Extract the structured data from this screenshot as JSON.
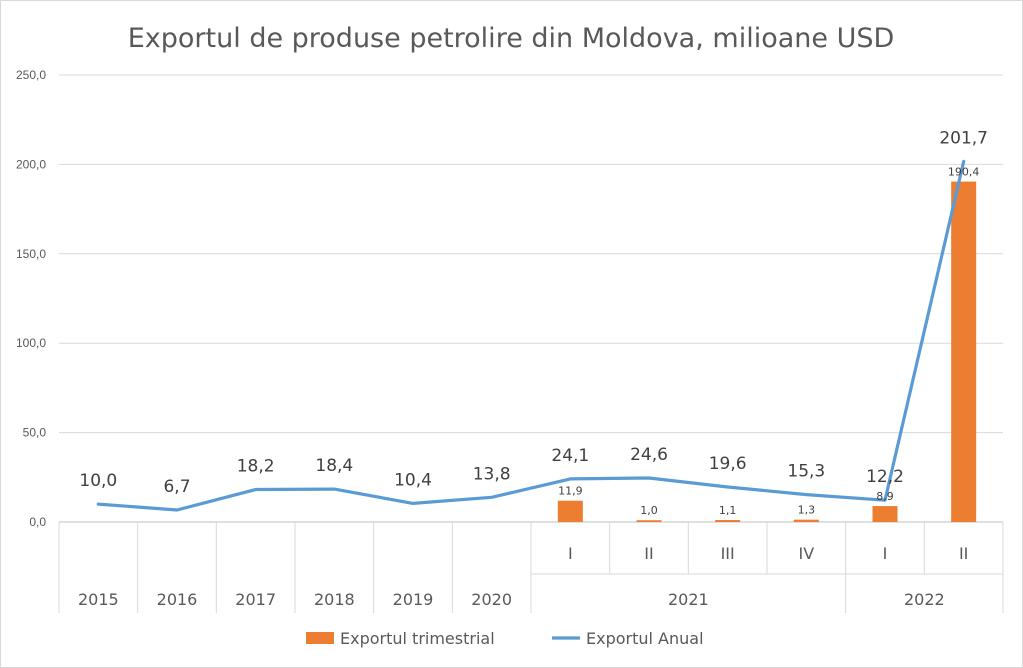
{
  "chart_data": {
    "type": "bar+line",
    "title": "Exportul de produse petrolire din Moldova, milioane USD",
    "ylim": [
      0,
      250
    ],
    "yticks": [
      "0,0",
      "50,0",
      "100,0",
      "150,0",
      "200,0",
      "250,0"
    ],
    "ytick_values": [
      0,
      50,
      100,
      150,
      200,
      250
    ],
    "grid": true,
    "legend_position": "bottom",
    "categories": [
      "2015",
      "2016",
      "2017",
      "2018",
      "2019",
      "2020",
      "I",
      "II",
      "III",
      "IV",
      "I",
      "II"
    ],
    "group_labels": [
      {
        "label": "2021",
        "from": 6,
        "to": 9
      },
      {
        "label": "2022",
        "from": 10,
        "to": 11
      }
    ],
    "series": [
      {
        "name": "Exportul trimestrial",
        "kind": "bar",
        "color": "#ed7d31",
        "values": [
          null,
          null,
          null,
          null,
          null,
          null,
          11.9,
          1.0,
          1.1,
          1.3,
          8.9,
          190.4
        ],
        "labels": [
          null,
          null,
          null,
          null,
          null,
          null,
          "11,9",
          "1,0",
          "1,1",
          "1,3",
          "8,9",
          "190,4"
        ]
      },
      {
        "name": "Exportul Anual",
        "kind": "line",
        "color": "#5b9bd5",
        "values": [
          10.0,
          6.7,
          18.2,
          18.4,
          10.4,
          13.8,
          24.1,
          24.6,
          19.6,
          15.3,
          12.2,
          201.7
        ],
        "labels": [
          "10,0",
          "6,7",
          "18,2",
          "18,4",
          "10,4",
          "13,8",
          "24,1",
          "24,6",
          "19,6",
          "15,3",
          "12,2",
          "201,7"
        ]
      }
    ]
  }
}
